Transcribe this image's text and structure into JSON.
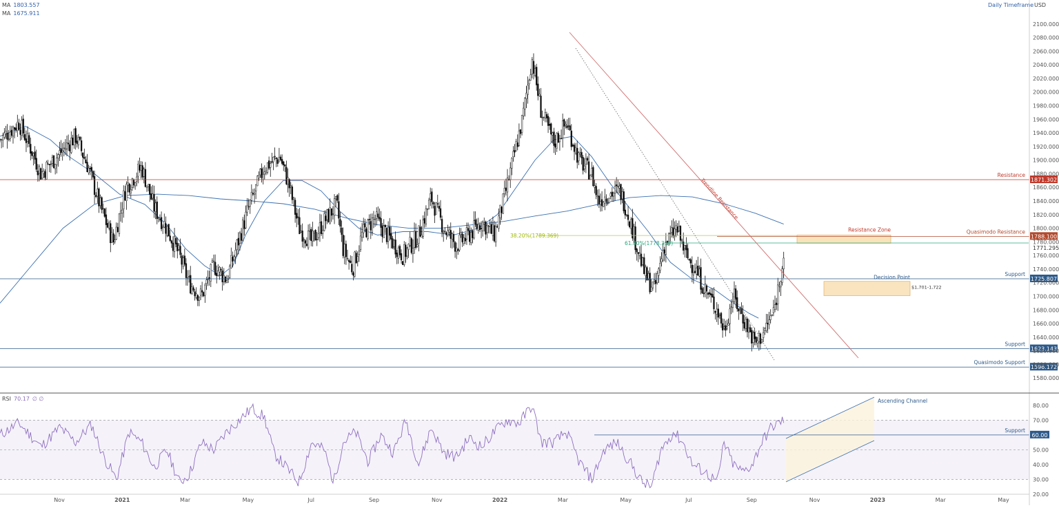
{
  "legend": {
    "ma1_label": "MA",
    "ma1_value": "1803.557",
    "ma2_label": "MA",
    "ma2_value": "1675.911",
    "rsi_label": "RSI",
    "rsi_value": "70.17",
    "rsi_extra": "∅  ∅"
  },
  "timeframe": "Daily Timeframe",
  "currency": "USD",
  "chart_data": {
    "type": "candlestick",
    "price_axis": {
      "range": [
        1560,
        2120
      ],
      "ticks": [
        1580,
        1600,
        1620,
        1640,
        1660,
        1680,
        1700,
        1720,
        1740,
        1760,
        1780,
        1800,
        1820,
        1840,
        1860,
        1880,
        1900,
        1920,
        1940,
        1960,
        1980,
        2000,
        2020,
        2040,
        2060,
        2080,
        2100
      ],
      "tick_labels": [
        "1580.000",
        "1600.000",
        "1620.000",
        "1640.000",
        "1660.000",
        "1680.000",
        "1700.000",
        "1720.000",
        "1740.000",
        "1760.000",
        "1780.000",
        "1800.000",
        "1820.000",
        "1840.000",
        "1860.000",
        "1880.000",
        "1900.000",
        "1920.000",
        "1940.000",
        "1960.000",
        "1980.000",
        "2000.000",
        "2020.000",
        "2040.000",
        "2060.000",
        "2080.000",
        "2100.000"
      ]
    },
    "time_axis": {
      "labels": [
        "Nov",
        "2021",
        "Mar",
        "May",
        "Jul",
        "Sep",
        "Nov",
        "2022",
        "Mar",
        "May",
        "Jul",
        "Sep",
        "Nov",
        "2023",
        "Mar",
        "May"
      ],
      "label_months": [
        0,
        2,
        4,
        6,
        8,
        10,
        12,
        14,
        16,
        18,
        20,
        22,
        24,
        26,
        28,
        30
      ],
      "start": "Oct 2020"
    },
    "price_anchors": [
      [
        0,
        1930
      ],
      [
        0.6,
        1955
      ],
      [
        1.0,
        1915
      ],
      [
        1.3,
        1880
      ],
      [
        1.8,
        1905
      ],
      [
        2.4,
        1935
      ],
      [
        2.8,
        1890
      ],
      [
        3.2,
        1830
      ],
      [
        3.6,
        1780
      ],
      [
        4.0,
        1860
      ],
      [
        4.5,
        1890
      ],
      [
        4.9,
        1830
      ],
      [
        5.3,
        1800
      ],
      [
        5.7,
        1760
      ],
      [
        6.0,
        1720
      ],
      [
        6.4,
        1700
      ],
      [
        6.8,
        1745
      ],
      [
        7.2,
        1725
      ],
      [
        7.5,
        1770
      ],
      [
        7.9,
        1830
      ],
      [
        8.4,
        1890
      ],
      [
        8.9,
        1905
      ],
      [
        9.2,
        1860
      ],
      [
        9.5,
        1800
      ],
      [
        9.9,
        1780
      ],
      [
        10.3,
        1810
      ],
      [
        10.7,
        1835
      ],
      [
        10.9,
        1770
      ],
      [
        11.2,
        1740
      ],
      [
        11.5,
        1790
      ],
      [
        11.9,
        1815
      ],
      [
        12.3,
        1790
      ],
      [
        12.8,
        1760
      ],
      [
        13.3,
        1790
      ],
      [
        13.7,
        1845
      ],
      [
        14.1,
        1800
      ],
      [
        14.5,
        1775
      ],
      [
        14.9,
        1790
      ],
      [
        15.3,
        1810
      ],
      [
        15.7,
        1790
      ],
      [
        16.0,
        1840
      ],
      [
        16.3,
        1900
      ],
      [
        16.6,
        1960
      ],
      [
        16.9,
        2050
      ],
      [
        17.2,
        1970
      ],
      [
        17.6,
        1925
      ],
      [
        18.0,
        1955
      ],
      [
        18.4,
        1900
      ],
      [
        18.8,
        1880
      ],
      [
        19.0,
        1840
      ],
      [
        19.3,
        1850
      ],
      [
        19.7,
        1855
      ],
      [
        20.0,
        1815
      ],
      [
        20.2,
        1780
      ],
      [
        20.5,
        1730
      ],
      [
        20.8,
        1710
      ],
      [
        21.1,
        1775
      ],
      [
        21.5,
        1800
      ],
      [
        21.8,
        1760
      ],
      [
        22.1,
        1740
      ],
      [
        22.4,
        1710
      ],
      [
        22.8,
        1680
      ],
      [
        23.0,
        1650
      ],
      [
        23.3,
        1700
      ],
      [
        23.7,
        1660
      ],
      [
        24.0,
        1630
      ],
      [
        24.3,
        1650
      ],
      [
        24.6,
        1680
      ],
      [
        24.9,
        1760
      ]
    ],
    "sma": [
      {
        "points": [
          [
            0,
            1935
          ],
          [
            0.8,
            1950
          ],
          [
            1.6,
            1930
          ],
          [
            2.2,
            1905
          ],
          [
            3.0,
            1880
          ],
          [
            3.8,
            1850
          ],
          [
            4.6,
            1835
          ],
          [
            5.3,
            1805
          ],
          [
            5.9,
            1770
          ],
          [
            6.5,
            1745
          ],
          [
            7.0,
            1730
          ],
          [
            7.4,
            1745
          ],
          [
            7.8,
            1790
          ],
          [
            8.4,
            1840
          ],
          [
            9.0,
            1870
          ],
          [
            9.6,
            1870
          ],
          [
            10.2,
            1855
          ],
          [
            10.8,
            1825
          ],
          [
            11.4,
            1800
          ],
          [
            12.0,
            1790
          ],
          [
            12.8,
            1795
          ],
          [
            13.6,
            1795
          ],
          [
            14.4,
            1790
          ],
          [
            15.2,
            1800
          ],
          [
            15.8,
            1820
          ],
          [
            16.4,
            1860
          ],
          [
            17.0,
            1900
          ],
          [
            17.6,
            1930
          ],
          [
            18.2,
            1935
          ],
          [
            18.8,
            1905
          ],
          [
            19.4,
            1865
          ],
          [
            20.0,
            1830
          ],
          [
            20.6,
            1795
          ],
          [
            21.3,
            1750
          ],
          [
            22.0,
            1725
          ],
          [
            22.7,
            1710
          ],
          [
            23.3,
            1690
          ],
          [
            23.8,
            1675
          ],
          [
            24.1,
            1668
          ]
        ]
      },
      {
        "points": [
          [
            0,
            1690
          ],
          [
            1.0,
            1745
          ],
          [
            2.0,
            1800
          ],
          [
            3.0,
            1835
          ],
          [
            4.0,
            1848
          ],
          [
            5.0,
            1850
          ],
          [
            6.0,
            1848
          ],
          [
            7.0,
            1843
          ],
          [
            8.0,
            1840
          ],
          [
            9.0,
            1836
          ],
          [
            10.0,
            1828
          ],
          [
            11.0,
            1815
          ],
          [
            12.0,
            1805
          ],
          [
            13.0,
            1800
          ],
          [
            14.0,
            1800
          ],
          [
            15.0,
            1805
          ],
          [
            16.0,
            1810
          ],
          [
            17.0,
            1818
          ],
          [
            18.0,
            1825
          ],
          [
            19.0,
            1835
          ],
          [
            20.0,
            1845
          ],
          [
            21.0,
            1848
          ],
          [
            22.0,
            1846
          ],
          [
            23.0,
            1836
          ],
          [
            24.0,
            1822
          ],
          [
            24.9,
            1806
          ]
        ]
      }
    ],
    "levels": [
      {
        "label": "Resistance",
        "price": 1871.302,
        "price_label": "1871.302",
        "color": "#c0392b"
      },
      {
        "label": "Support",
        "price": 1725.807,
        "price_label": "1725.807",
        "color": "#2d5a8a"
      },
      {
        "label": "Support",
        "price": 1623.143,
        "price_label": "1623.143",
        "color": "#2d5a8a"
      },
      {
        "label": "Quasimodo Support",
        "price": 1596.172,
        "price_label": "1596.172",
        "color": "#2d5a8a"
      },
      {
        "label": "Quasimodo Resistance",
        "price": 1788.1,
        "price_label": "1788.100",
        "color": "#b24a2e"
      }
    ],
    "fib_labels": [
      {
        "text": "38.20%(1789.369)",
        "price": 1789.369,
        "color": "#9fb800"
      },
      {
        "text": "61.80%(1778.309)",
        "price": 1778.309,
        "color": "#2aa57a"
      }
    ],
    "last_price_label": "1771.295",
    "annotations": {
      "trendline": "Trendline Resistance",
      "resistance_zone": "Resistance Zone",
      "decision_point": "Decision Point",
      "decision_range": "$1,701-1,722",
      "ascending_channel": "Ascending Channel"
    },
    "rsi": {
      "range": [
        20,
        85
      ],
      "tick_labels": [
        "20.00",
        "30.00",
        "40.00",
        "50.00",
        "60.00",
        "70.00",
        "80.00"
      ],
      "ticks": [
        20,
        30,
        40,
        50,
        60,
        70,
        80
      ],
      "overbought": 70,
      "oversold": 30,
      "mid": 50,
      "support_label": "Support",
      "support_value": 60,
      "support_value_label": "60.00",
      "anchors": [
        [
          0,
          60
        ],
        [
          0.6,
          68
        ],
        [
          1.3,
          52
        ],
        [
          1.9,
          65
        ],
        [
          2.4,
          55
        ],
        [
          2.9,
          67
        ],
        [
          3.3,
          45
        ],
        [
          3.7,
          30
        ],
        [
          4.1,
          62
        ],
        [
          4.5,
          55
        ],
        [
          4.9,
          38
        ],
        [
          5.3,
          50
        ],
        [
          5.7,
          28
        ],
        [
          6.0,
          33
        ],
        [
          6.4,
          55
        ],
        [
          6.8,
          50
        ],
        [
          7.2,
          62
        ],
        [
          7.6,
          70
        ],
        [
          8.0,
          78
        ],
        [
          8.4,
          72
        ],
        [
          8.7,
          48
        ],
        [
          9.1,
          38
        ],
        [
          9.5,
          28
        ],
        [
          9.9,
          55
        ],
        [
          10.3,
          50
        ],
        [
          10.6,
          28
        ],
        [
          10.9,
          55
        ],
        [
          11.3,
          62
        ],
        [
          11.7,
          42
        ],
        [
          12.1,
          60
        ],
        [
          12.5,
          48
        ],
        [
          12.9,
          70
        ],
        [
          13.3,
          40
        ],
        [
          13.7,
          65
        ],
        [
          14.1,
          48
        ],
        [
          14.5,
          45
        ],
        [
          14.9,
          58
        ],
        [
          15.3,
          52
        ],
        [
          15.7,
          62
        ],
        [
          16.1,
          70
        ],
        [
          16.5,
          68
        ],
        [
          16.9,
          80
        ],
        [
          17.2,
          55
        ],
        [
          17.6,
          55
        ],
        [
          18.0,
          62
        ],
        [
          18.4,
          42
        ],
        [
          18.8,
          30
        ],
        [
          19.2,
          50
        ],
        [
          19.6,
          55
        ],
        [
          20.0,
          42
        ],
        [
          20.4,
          28
        ],
        [
          20.7,
          25
        ],
        [
          21.0,
          50
        ],
        [
          21.4,
          62
        ],
        [
          21.7,
          55
        ],
        [
          22.0,
          40
        ],
        [
          22.4,
          35
        ],
        [
          22.8,
          28
        ],
        [
          23.0,
          55
        ],
        [
          23.3,
          40
        ],
        [
          23.6,
          35
        ],
        [
          23.9,
          40
        ],
        [
          24.2,
          55
        ],
        [
          24.5,
          65
        ],
        [
          24.9,
          70
        ]
      ]
    }
  }
}
